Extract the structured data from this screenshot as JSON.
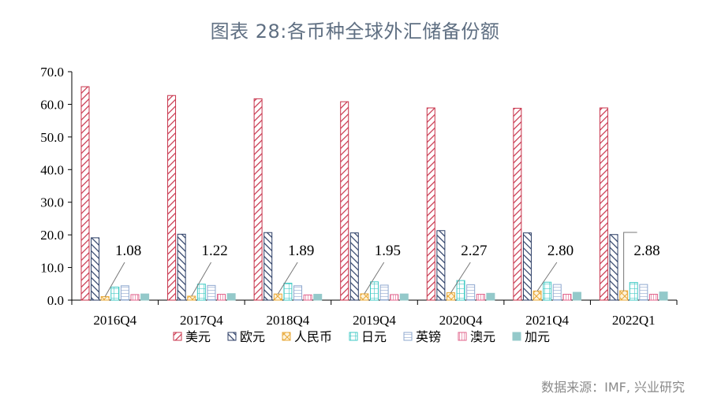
{
  "title": "图表 28:各币种全球外汇储备份额",
  "source": "数据来源：IMF, 兴业研究",
  "chart_data": {
    "type": "bar",
    "title": "图表 28:各币种全球外汇储备份额",
    "xlabel": "",
    "ylabel": "",
    "ylim": [
      0,
      70
    ],
    "yticks": [
      "0.0",
      "10.0",
      "20.0",
      "30.0",
      "40.0",
      "50.0",
      "60.0",
      "70.0"
    ],
    "grid": false,
    "legend_position": "bottom",
    "categories": [
      "2016Q4",
      "2017Q4",
      "2018Q4",
      "2019Q4",
      "2020Q4",
      "2021Q4",
      "2022Q1"
    ],
    "series": [
      {
        "name": "美元",
        "color": "#c8334b",
        "pattern": "diag-down",
        "values": [
          65.4,
          62.7,
          61.7,
          60.8,
          58.9,
          58.8,
          58.9
        ]
      },
      {
        "name": "欧元",
        "color": "#2c3e66",
        "pattern": "diag-up",
        "values": [
          19.1,
          20.2,
          20.7,
          20.6,
          21.3,
          20.6,
          20.1
        ]
      },
      {
        "name": "人民币",
        "color": "#e8a93a",
        "pattern": "cross",
        "values": [
          1.08,
          1.22,
          1.89,
          1.95,
          2.27,
          2.8,
          2.88
        ]
      },
      {
        "name": "日元",
        "color": "#3fc9c4",
        "pattern": "grid",
        "values": [
          4.0,
          4.9,
          5.2,
          5.6,
          6.0,
          5.5,
          5.4
        ]
      },
      {
        "name": "英镑",
        "color": "#8fa8cf",
        "pattern": "horizontal",
        "values": [
          4.4,
          4.5,
          4.4,
          4.6,
          4.7,
          4.8,
          4.8
        ]
      },
      {
        "name": "澳元",
        "color": "#e0608a",
        "pattern": "vertical",
        "values": [
          1.7,
          1.8,
          1.6,
          1.7,
          1.8,
          1.8,
          1.8
        ]
      },
      {
        "name": "加元",
        "color": "#94c9ca",
        "pattern": "solid",
        "values": [
          1.9,
          2.0,
          1.8,
          1.9,
          2.1,
          2.4,
          2.5
        ]
      }
    ],
    "annotations": [
      {
        "series": "人民币",
        "category": "2016Q4",
        "label": "1.08"
      },
      {
        "series": "人民币",
        "category": "2017Q4",
        "label": "1.22"
      },
      {
        "series": "人民币",
        "category": "2018Q4",
        "label": "1.89"
      },
      {
        "series": "人民币",
        "category": "2019Q4",
        "label": "1.95"
      },
      {
        "series": "人民币",
        "category": "2020Q4",
        "label": "2.27"
      },
      {
        "series": "人民币",
        "category": "2021Q4",
        "label": "2.80"
      },
      {
        "series": "人民币",
        "category": "2022Q1",
        "label": "2.88"
      }
    ]
  }
}
